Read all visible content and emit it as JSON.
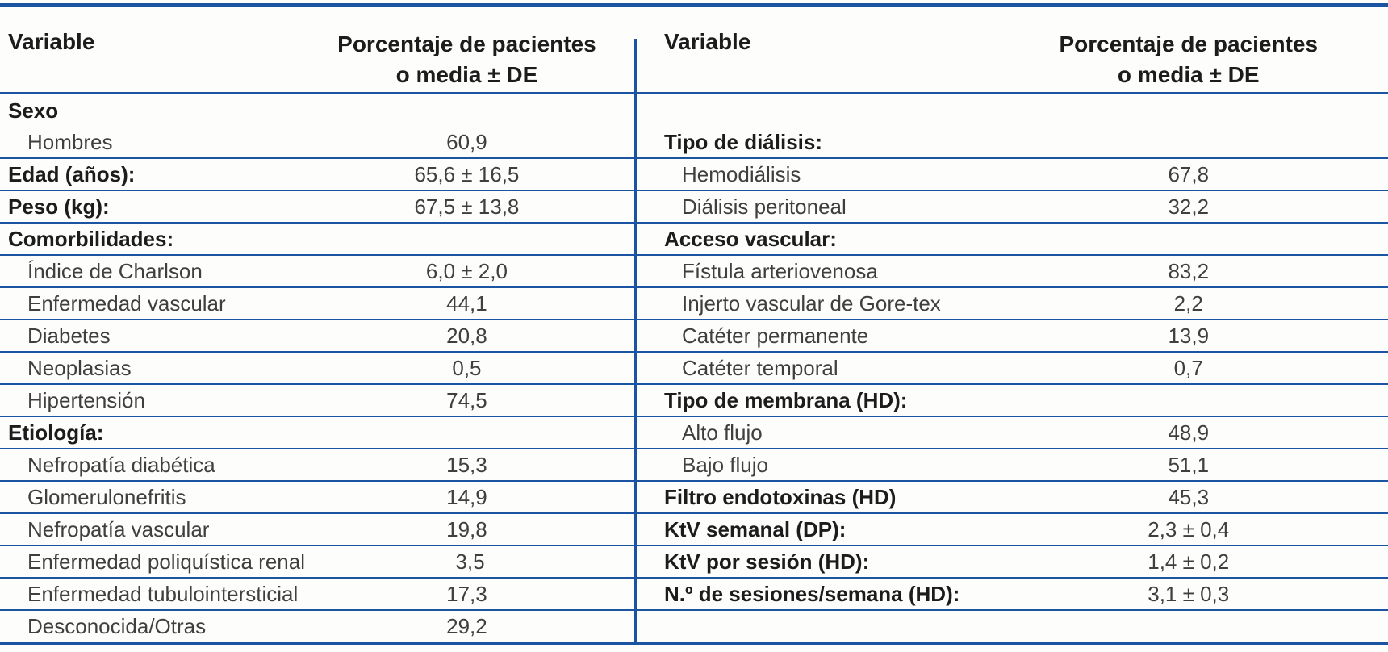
{
  "colors": {
    "line_blue": "#1b54a3",
    "text_regular": "#3f3f3f",
    "text_bold": "#1c1c1c",
    "background": "#fdfdfb"
  },
  "header": {
    "variable": "Variable",
    "value_line1": "Porcentaje de pacientes",
    "value_line2": "o media ± DE"
  },
  "left_rows": [
    {
      "label": "Sexo",
      "value": "",
      "bold": true,
      "indent": false,
      "line_below": false
    },
    {
      "label": "Hombres",
      "value": "60,9",
      "bold": false,
      "indent": true,
      "line_below": true
    },
    {
      "label": "Edad (años):",
      "value": "65,6 ± 16,5",
      "bold": true,
      "indent": false,
      "line_below": true
    },
    {
      "label": "Peso (kg):",
      "value": "67,5 ± 13,8",
      "bold": true,
      "indent": false,
      "line_below": true
    },
    {
      "label": "Comorbilidades:",
      "value": "",
      "bold": true,
      "indent": false,
      "line_below": true
    },
    {
      "label": "Índice de Charlson",
      "value": "6,0 ± 2,0",
      "bold": false,
      "indent": true,
      "line_below": true
    },
    {
      "label": "Enfermedad vascular",
      "value": "44,1",
      "bold": false,
      "indent": true,
      "line_below": true
    },
    {
      "label": "Diabetes",
      "value": "20,8",
      "bold": false,
      "indent": true,
      "line_below": true
    },
    {
      "label": "Neoplasias",
      "value": "0,5",
      "bold": false,
      "indent": true,
      "line_below": true
    },
    {
      "label": "Hipertensión",
      "value": "74,5",
      "bold": false,
      "indent": true,
      "line_below": true
    },
    {
      "label": "Etiología:",
      "value": "",
      "bold": true,
      "indent": false,
      "line_below": true
    },
    {
      "label": "Nefropatía diabética",
      "value": "15,3",
      "bold": false,
      "indent": true,
      "line_below": true
    },
    {
      "label": "Glomerulonefritis",
      "value": "14,9",
      "bold": false,
      "indent": true,
      "line_below": true
    },
    {
      "label": "Nefropatía vascular",
      "value": "19,8",
      "bold": false,
      "indent": true,
      "line_below": true
    },
    {
      "label": "Enfermedad poliquística renal",
      "value": "3,5",
      "bold": false,
      "indent": true,
      "line_below": true
    },
    {
      "label": "Enfermedad tubulointersticial",
      "value": "17,3",
      "bold": false,
      "indent": true,
      "line_below": true
    },
    {
      "label": "Desconocida/Otras",
      "value": "29,2",
      "bold": false,
      "indent": true,
      "line_below": false
    }
  ],
  "right_rows": [
    {
      "label": "",
      "value": "",
      "bold": false,
      "indent": false,
      "line_below": false
    },
    {
      "label": "Tipo de diálisis:",
      "value": "",
      "bold": true,
      "indent": false,
      "line_below": true
    },
    {
      "label": "Hemodiálisis",
      "value": "67,8",
      "bold": false,
      "indent": true,
      "line_below": true
    },
    {
      "label": "Diálisis peritoneal",
      "value": "32,2",
      "bold": false,
      "indent": true,
      "line_below": true
    },
    {
      "label": "Acceso vascular:",
      "value": "",
      "bold": true,
      "indent": false,
      "line_below": true
    },
    {
      "label": "Fístula arteriovenosa",
      "value": "83,2",
      "bold": false,
      "indent": true,
      "line_below": true
    },
    {
      "label": "Injerto vascular de Gore-tex",
      "value": "2,2",
      "bold": false,
      "indent": true,
      "line_below": true
    },
    {
      "label": "Catéter permanente",
      "value": "13,9",
      "bold": false,
      "indent": true,
      "line_below": true
    },
    {
      "label": "Catéter temporal",
      "value": "0,7",
      "bold": false,
      "indent": true,
      "line_below": true
    },
    {
      "label": "Tipo de membrana (HD):",
      "value": "",
      "bold": true,
      "indent": false,
      "line_below": true
    },
    {
      "label": "Alto flujo",
      "value": "48,9",
      "bold": false,
      "indent": true,
      "line_below": true
    },
    {
      "label": "Bajo flujo",
      "value": "51,1",
      "bold": false,
      "indent": true,
      "line_below": true
    },
    {
      "label": "Filtro endotoxinas (HD)",
      "value": "45,3",
      "bold": true,
      "indent": false,
      "line_below": true
    },
    {
      "label": "KtV semanal (DP):",
      "value": "2,3 ± 0,4",
      "bold": true,
      "indent": false,
      "line_below": true
    },
    {
      "label": "KtV por sesión (HD):",
      "value": "1,4 ± 0,2",
      "bold": true,
      "indent": false,
      "line_below": true
    },
    {
      "label": "N.º de sesiones/semana (HD):",
      "value": "3,1 ± 0,3",
      "bold": true,
      "indent": false,
      "line_below": true
    },
    {
      "label": "",
      "value": "",
      "bold": false,
      "indent": false,
      "line_below": false
    }
  ]
}
